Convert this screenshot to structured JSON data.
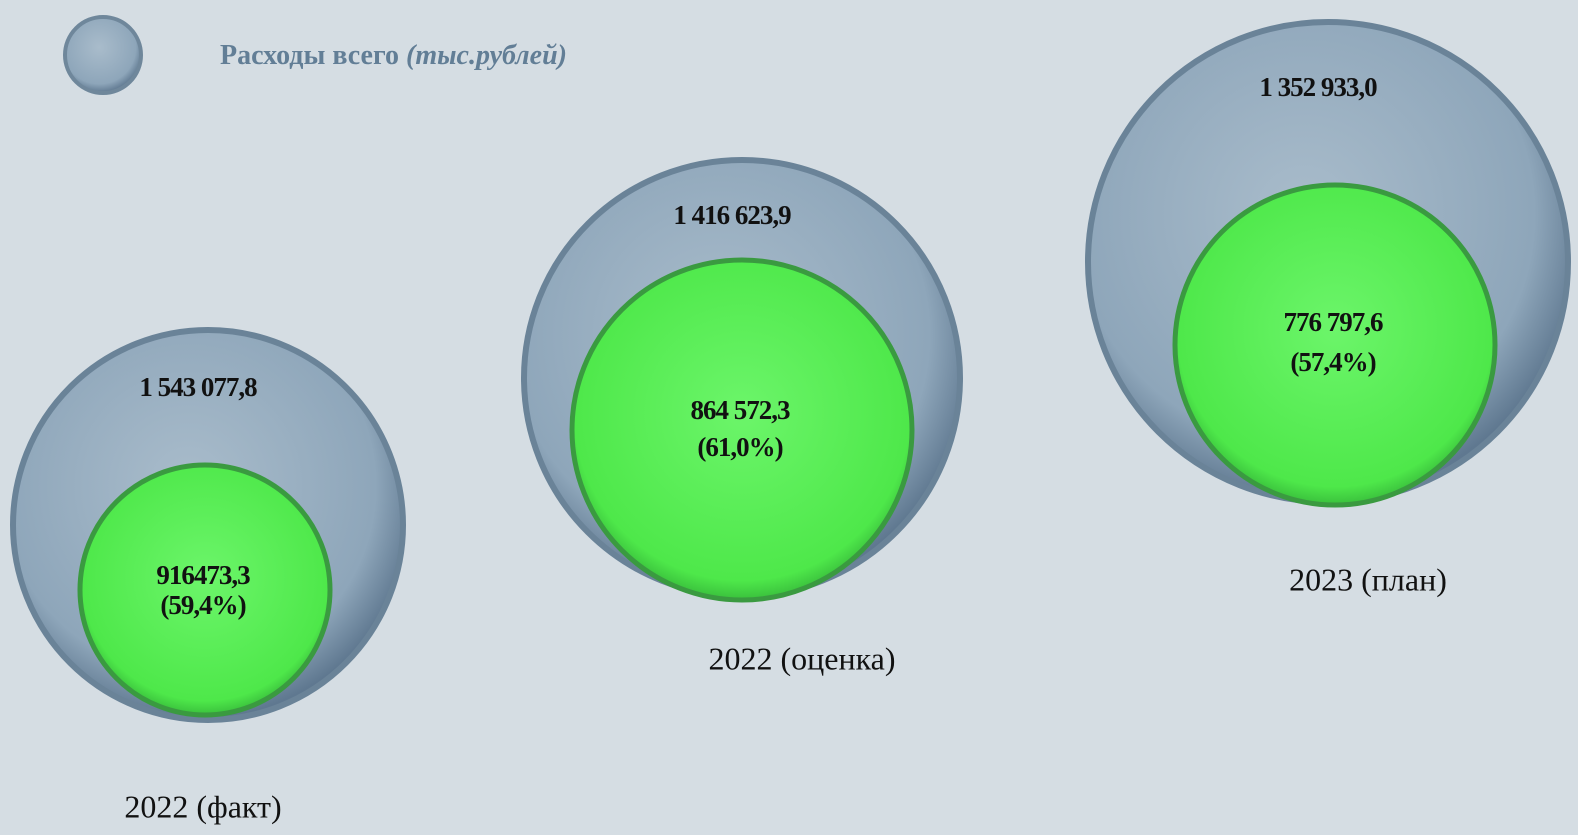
{
  "header": {
    "title": "Расходы всего",
    "unit": "(тыс.рублей)"
  },
  "groups": [
    {
      "total": "1 543 077,8",
      "part": "916473,3",
      "share": "(59,4%)",
      "label": "2022 (факт)"
    },
    {
      "total": "1 416 623,9",
      "part": "864 572,3",
      "share": "(61,0%)",
      "label": "2022 (оценка)"
    },
    {
      "total": "1 352 933,0",
      "part": "776 797,6",
      "share": "(57,4%)",
      "label": "2023 (план)"
    }
  ]
}
